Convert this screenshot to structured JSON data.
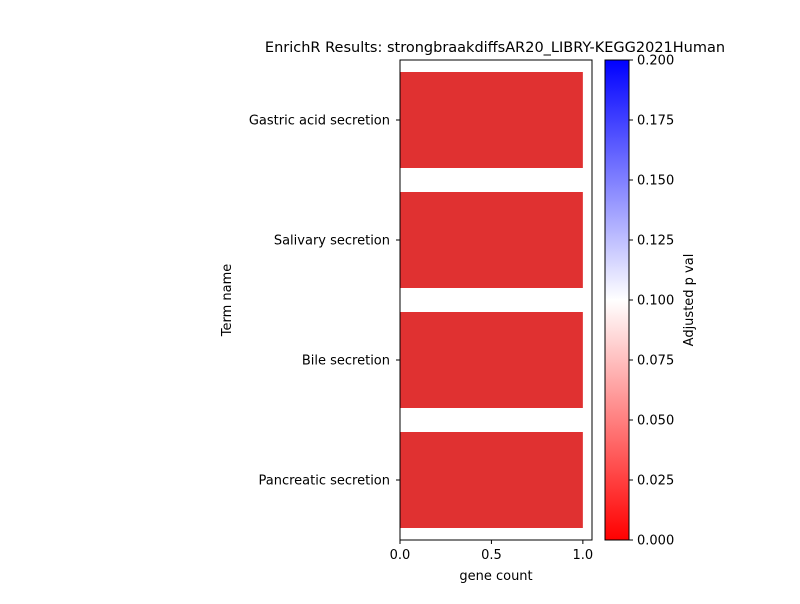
{
  "chart_data": {
    "type": "bar",
    "orientation": "horizontal",
    "title": "EnrichR Results: strongbraakdiffsAR20_LIBRY-KEGG2021Human",
    "xlabel": "gene count",
    "ylabel": "Term name",
    "categories": [
      "Gastric acid secretion",
      "Salivary secretion",
      "Bile secretion",
      "Pancreatic secretion"
    ],
    "values": [
      1,
      1,
      1,
      1
    ],
    "bar_color": "#e03131",
    "xlim": [
      0,
      1.05
    ],
    "xticks": [
      "0.0",
      "0.5",
      "1.0"
    ],
    "colorbar": {
      "label": "Adjusted p val",
      "range": [
        0.0,
        0.2
      ],
      "ticks": [
        "0.000",
        "0.025",
        "0.050",
        "0.075",
        "0.100",
        "0.125",
        "0.150",
        "0.175",
        "0.200"
      ],
      "colors": [
        "#ff0000",
        "#ffffff",
        "#0000ff"
      ]
    }
  }
}
